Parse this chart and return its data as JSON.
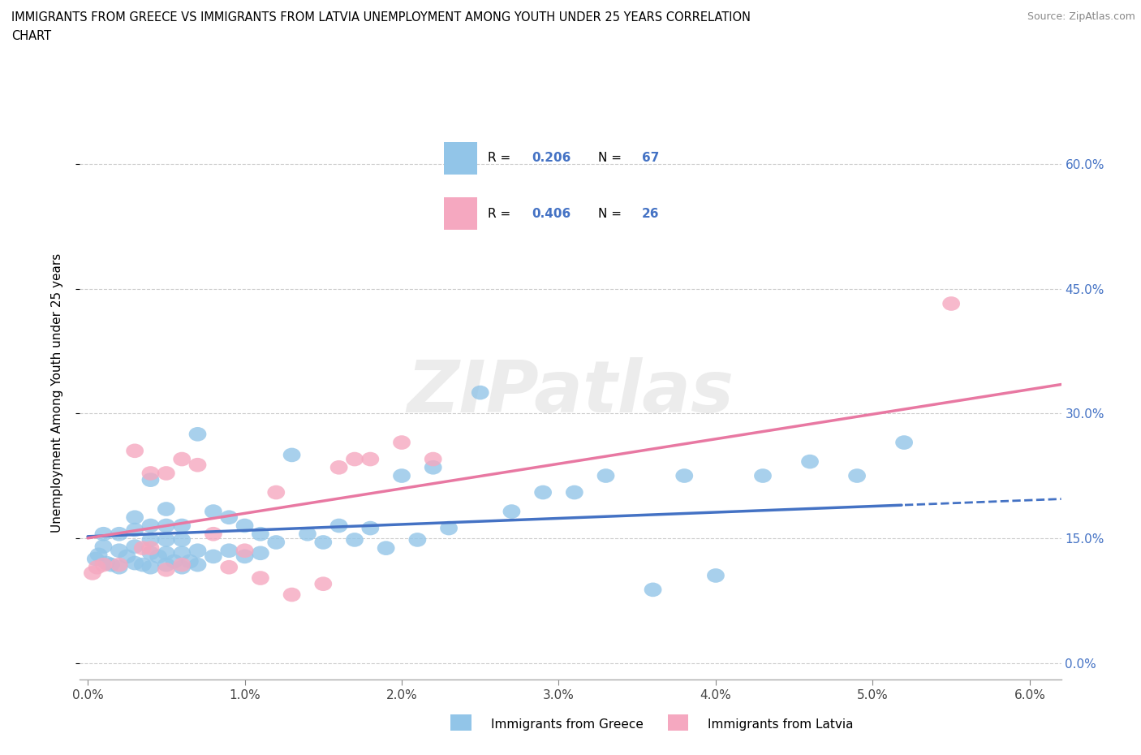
{
  "title_line1": "IMMIGRANTS FROM GREECE VS IMMIGRANTS FROM LATVIA UNEMPLOYMENT AMONG YOUTH UNDER 25 YEARS CORRELATION",
  "title_line2": "CHART",
  "source": "Source: ZipAtlas.com",
  "ylabel": "Unemployment Among Youth under 25 years",
  "xlim": [
    -0.0005,
    0.062
  ],
  "ylim": [
    -0.02,
    0.67
  ],
  "xticks": [
    0.0,
    0.01,
    0.02,
    0.03,
    0.04,
    0.05,
    0.06
  ],
  "xticklabels": [
    "0.0%",
    "1.0%",
    "2.0%",
    "3.0%",
    "4.0%",
    "5.0%",
    "6.0%"
  ],
  "yticks": [
    0.0,
    0.15,
    0.3,
    0.45,
    0.6
  ],
  "yticklabels": [
    "0.0%",
    "15.0%",
    "30.0%",
    "45.0%",
    "60.0%"
  ],
  "greece_color": "#92C5E8",
  "latvia_color": "#F5A8C0",
  "greece_line_color": "#4472C4",
  "latvia_line_color": "#E878A2",
  "legend_text_color": "#4472C4",
  "greece_R": 0.206,
  "greece_N": 67,
  "latvia_R": 0.406,
  "latvia_N": 26,
  "watermark": "ZIPatlas",
  "legend_label1": "Immigrants from Greece",
  "legend_label2": "Immigrants from Latvia",
  "greece_x": [
    0.0005,
    0.0007,
    0.001,
    0.001,
    0.0012,
    0.0015,
    0.002,
    0.002,
    0.002,
    0.0025,
    0.003,
    0.003,
    0.003,
    0.003,
    0.0035,
    0.004,
    0.004,
    0.004,
    0.004,
    0.004,
    0.0045,
    0.005,
    0.005,
    0.005,
    0.005,
    0.005,
    0.0055,
    0.006,
    0.006,
    0.006,
    0.006,
    0.0065,
    0.007,
    0.007,
    0.007,
    0.008,
    0.008,
    0.009,
    0.009,
    0.01,
    0.01,
    0.011,
    0.011,
    0.012,
    0.013,
    0.014,
    0.015,
    0.016,
    0.017,
    0.018,
    0.019,
    0.02,
    0.021,
    0.022,
    0.023,
    0.025,
    0.027,
    0.029,
    0.031,
    0.033,
    0.036,
    0.038,
    0.04,
    0.043,
    0.046,
    0.049,
    0.052
  ],
  "greece_y": [
    0.125,
    0.13,
    0.14,
    0.155,
    0.12,
    0.118,
    0.115,
    0.135,
    0.155,
    0.128,
    0.12,
    0.14,
    0.16,
    0.175,
    0.118,
    0.115,
    0.132,
    0.148,
    0.165,
    0.22,
    0.128,
    0.118,
    0.132,
    0.148,
    0.165,
    0.185,
    0.122,
    0.115,
    0.132,
    0.148,
    0.165,
    0.122,
    0.118,
    0.135,
    0.275,
    0.128,
    0.182,
    0.135,
    0.175,
    0.128,
    0.165,
    0.132,
    0.155,
    0.145,
    0.25,
    0.155,
    0.145,
    0.165,
    0.148,
    0.162,
    0.138,
    0.225,
    0.148,
    0.235,
    0.162,
    0.325,
    0.182,
    0.205,
    0.205,
    0.225,
    0.088,
    0.225,
    0.105,
    0.225,
    0.242,
    0.225,
    0.265
  ],
  "latvia_x": [
    0.0003,
    0.0006,
    0.001,
    0.002,
    0.003,
    0.0035,
    0.004,
    0.004,
    0.005,
    0.005,
    0.006,
    0.006,
    0.007,
    0.008,
    0.009,
    0.01,
    0.011,
    0.012,
    0.013,
    0.015,
    0.016,
    0.017,
    0.018,
    0.02,
    0.022,
    0.055
  ],
  "latvia_y": [
    0.108,
    0.115,
    0.118,
    0.118,
    0.255,
    0.138,
    0.138,
    0.228,
    0.112,
    0.228,
    0.118,
    0.245,
    0.238,
    0.155,
    0.115,
    0.135,
    0.102,
    0.205,
    0.082,
    0.095,
    0.235,
    0.245,
    0.245,
    0.265,
    0.245,
    0.432
  ]
}
